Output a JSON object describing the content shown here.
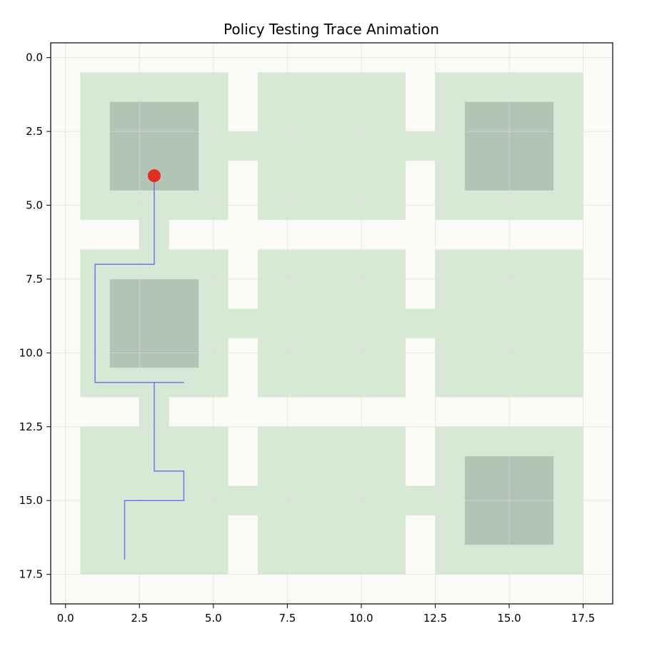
{
  "chart_data": {
    "type": "scatter",
    "title": "Policy Testing Trace Animation",
    "xlabel": "",
    "ylabel": "",
    "xlim": [
      -0.5,
      18.5
    ],
    "ylim": [
      18.5,
      -0.5
    ],
    "y_inverted": true,
    "grid": true,
    "xticks": [
      0.0,
      2.5,
      5.0,
      7.5,
      10.0,
      12.5,
      15.0,
      17.5
    ],
    "yticks": [
      0.0,
      2.5,
      5.0,
      7.5,
      10.0,
      12.5,
      15.0,
      17.5
    ],
    "xtick_labels": [
      "0.0",
      "2.5",
      "5.0",
      "7.5",
      "10.0",
      "12.5",
      "15.0",
      "17.5"
    ],
    "ytick_labels": [
      "0.0",
      "2.5",
      "5.0",
      "7.5",
      "10.0",
      "12.5",
      "15.0",
      "17.5"
    ],
    "free_cells": [
      [
        0.5,
        0.5,
        5.5,
        5.5
      ],
      [
        6.5,
        0.5,
        11.5,
        5.5
      ],
      [
        12.5,
        0.5,
        17.5,
        5.5
      ],
      [
        0.5,
        6.5,
        5.5,
        11.5
      ],
      [
        6.5,
        6.5,
        11.5,
        11.5
      ],
      [
        12.5,
        6.5,
        17.5,
        11.5
      ],
      [
        0.5,
        12.5,
        5.5,
        17.5
      ],
      [
        6.5,
        12.5,
        11.5,
        17.5
      ],
      [
        12.5,
        12.5,
        17.5,
        17.5
      ],
      [
        5.5,
        2.5,
        6.5,
        3.5
      ],
      [
        11.5,
        2.5,
        12.5,
        3.5
      ],
      [
        5.5,
        8.5,
        6.5,
        9.5
      ],
      [
        11.5,
        8.5,
        12.5,
        9.5
      ],
      [
        5.5,
        14.5,
        6.5,
        15.5
      ],
      [
        11.5,
        14.5,
        12.5,
        15.5
      ],
      [
        2.5,
        5.5,
        3.5,
        6.5
      ],
      [
        2.5,
        11.5,
        3.5,
        12.5
      ]
    ],
    "target_cells": [
      [
        1.5,
        1.5,
        4.5,
        4.5
      ],
      [
        13.5,
        1.5,
        16.5,
        4.5
      ],
      [
        1.5,
        7.5,
        4.5,
        10.5
      ],
      [
        13.5,
        13.5,
        16.5,
        16.5
      ]
    ],
    "trace": {
      "x": [
        2,
        2,
        4,
        4,
        3,
        3,
        4,
        1,
        1,
        3,
        3
      ],
      "y": [
        17,
        15,
        15,
        14,
        14,
        11,
        11,
        11,
        7,
        7,
        4
      ]
    },
    "agent": {
      "x": 3,
      "y": 4
    },
    "colors": {
      "background": "#fafbf6",
      "free": "#d7e8d4",
      "target": "#b3c3b6",
      "trace": "#6a77ec",
      "agent": "#e22d22",
      "grid": "#dcdcdc"
    }
  }
}
